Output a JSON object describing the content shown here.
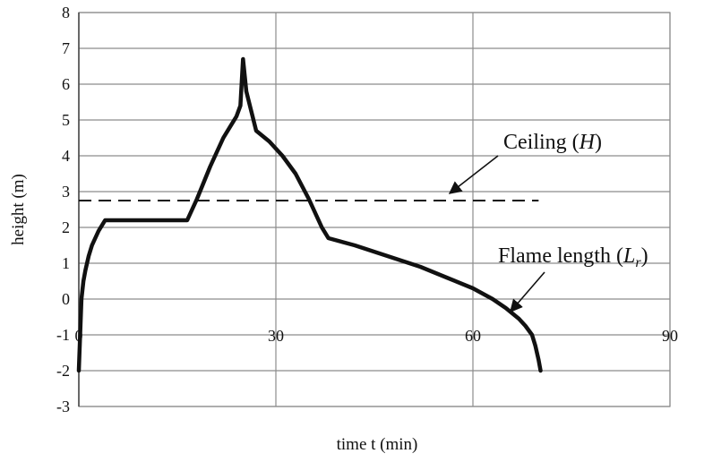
{
  "chart_data": {
    "type": "line",
    "xlabel": "time t (min)",
    "ylabel": "height (m)",
    "xlim": [
      0,
      90
    ],
    "ylim": [
      -3,
      8
    ],
    "x_ticks": [
      "0",
      "30",
      "60",
      "90"
    ],
    "y_ticks": [
      "-3",
      "-2",
      "-1",
      "0",
      "1",
      "2",
      "3",
      "4",
      "5",
      "6",
      "7",
      "8"
    ],
    "grid": true,
    "series": [
      {
        "name": "Ceiling (H)",
        "style": "dashed",
        "x": [
          0,
          70
        ],
        "y": [
          2.75,
          2.75
        ]
      },
      {
        "name": "Flame length (Lr)",
        "style": "solid-thick",
        "x": [
          0,
          0.2,
          0.4,
          0.7,
          1,
          1.5,
          2,
          3,
          4,
          16.5,
          18,
          20,
          22,
          24,
          24.6,
          25,
          25.5,
          27,
          29,
          31,
          33,
          35,
          37,
          38,
          42,
          47,
          52,
          56,
          60,
          63,
          65,
          67,
          68,
          69,
          69.5,
          70,
          70.3
        ],
        "y": [
          -2,
          -1,
          0,
          0.5,
          0.8,
          1.2,
          1.5,
          1.9,
          2.2,
          2.2,
          2.8,
          3.7,
          4.5,
          5.1,
          5.4,
          6.7,
          5.8,
          4.7,
          4.4,
          4.0,
          3.5,
          2.8,
          2.0,
          1.7,
          1.5,
          1.2,
          0.9,
          0.6,
          0.3,
          0.0,
          -0.25,
          -0.55,
          -0.75,
          -1.0,
          -1.3,
          -1.7,
          -2.0
        ]
      }
    ],
    "annotations": [
      {
        "label": "Ceiling",
        "var": "H",
        "points_to": "Ceiling (H)"
      },
      {
        "label": "Flame length",
        "var": "L",
        "sub": "r",
        "points_to": "Flame length (Lr)"
      }
    ]
  },
  "colors": {
    "grid": "#8c8c8c",
    "line": "#111111",
    "background": "#ffffff"
  }
}
